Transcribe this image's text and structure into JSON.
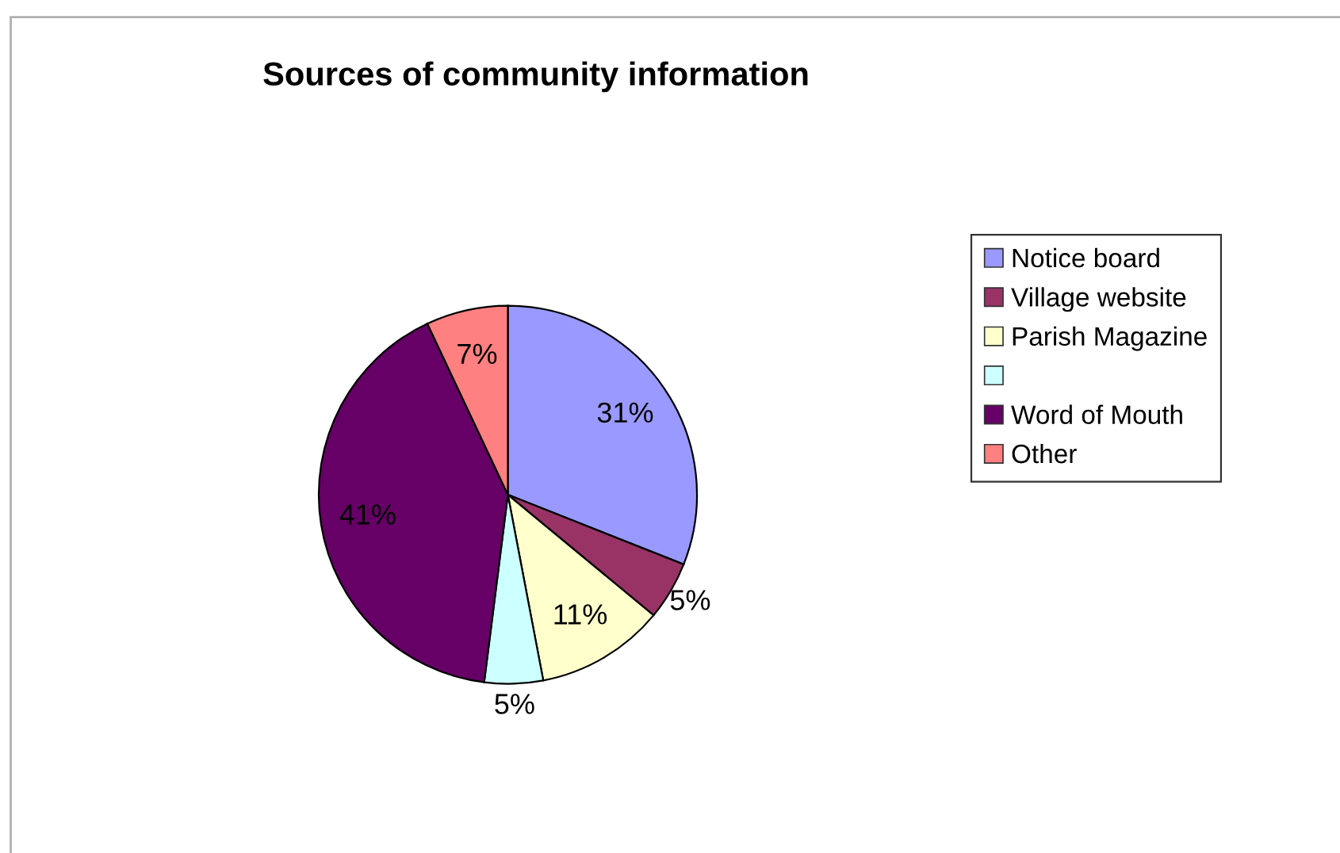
{
  "chart_data": {
    "type": "pie",
    "title": "Sources of community information",
    "categories": [
      "Notice board",
      "Village website",
      "Parish Magazine",
      null,
      "Word of Mouth",
      "Other"
    ],
    "values": [
      31,
      5,
      11,
      5,
      41,
      7
    ],
    "colors": [
      "#9999ff",
      "#993366",
      "#ffffcc",
      "#ccffff",
      "#660066",
      "#ff8080"
    ],
    "value_labels": [
      "31%",
      "5%",
      "11%",
      "5%",
      "41%",
      "7%"
    ],
    "legend": "right"
  }
}
